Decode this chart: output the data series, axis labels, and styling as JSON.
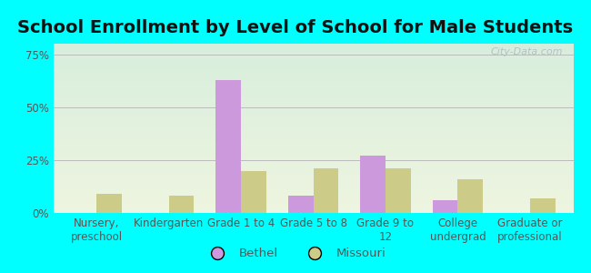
{
  "title": "School Enrollment by Level of School for Male Students",
  "categories": [
    "Nursery,\npreschool",
    "Kindergarten",
    "Grade 1 to 4",
    "Grade 5 to 8",
    "Grade 9 to\n12",
    "College\nundergrad",
    "Graduate or\nprofessional"
  ],
  "bethel": [
    0,
    0,
    63,
    8,
    27,
    6,
    0
  ],
  "missouri": [
    9,
    8,
    20,
    21,
    21,
    16,
    7
  ],
  "bethel_color": "#cc99dd",
  "missouri_color": "#cccc88",
  "ylim": [
    0,
    80
  ],
  "yticks": [
    0,
    25,
    50,
    75
  ],
  "ytick_labels": [
    "0%",
    "25%",
    "50%",
    "75%"
  ],
  "background_color": "#00ffff",
  "bg_top_color": "#d8eedd",
  "bg_bottom_color": "#eef5e0",
  "title_fontsize": 14,
  "tick_fontsize": 8.5,
  "legend_fontsize": 9.5,
  "bar_width": 0.35,
  "grid_color": "#bbbbbb",
  "watermark": "City-Data.com",
  "title_color": "#111111",
  "tick_color": "#555555"
}
